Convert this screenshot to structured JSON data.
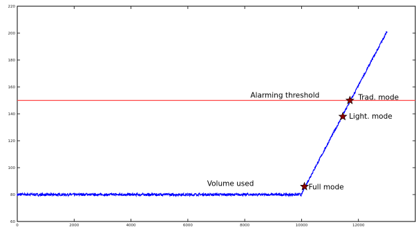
{
  "chart_data": {
    "type": "line",
    "title": "",
    "xlabel": "",
    "ylabel": "",
    "xlim": [
      0,
      14000
    ],
    "ylim": [
      60,
      220
    ],
    "xticks": [
      "0",
      "2000",
      "4000",
      "6000",
      "8000",
      "10000",
      "12000"
    ],
    "xtick_values": [
      0,
      2000,
      4000,
      6000,
      8000,
      10000,
      12000
    ],
    "yticks": [
      "60",
      "80",
      "100",
      "120",
      "140",
      "160",
      "180",
      "200",
      "220"
    ],
    "ytick_values": [
      60,
      80,
      100,
      120,
      140,
      160,
      180,
      200,
      220
    ],
    "grid": false,
    "series": [
      {
        "color": "#0000ff",
        "noise": 1.0,
        "points": [
          [
            0,
            80
          ],
          [
            10000,
            80
          ],
          [
            10100,
            85
          ],
          [
            13000,
            201
          ]
        ]
      }
    ],
    "threshold": {
      "label": "Alarming threshold",
      "value": 150,
      "color": "#ff4444"
    },
    "markers": [
      {
        "label": "Full mode",
        "x": 10100,
        "y": 86
      },
      {
        "label": "Light. mode",
        "x": 11450,
        "y": 138
      },
      {
        "label": "Trad. mode",
        "x": 11700,
        "y": 150
      }
    ],
    "marker_color": "#8b0000",
    "annotations": [
      {
        "label": "Volume used",
        "x": 7500,
        "y": 86.5
      }
    ]
  }
}
